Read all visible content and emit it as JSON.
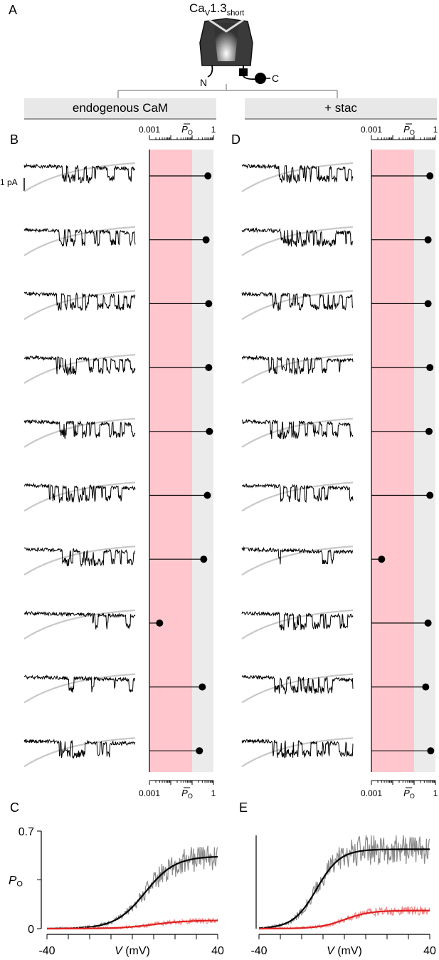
{
  "panel_labels": {
    "A": "A",
    "B": "B",
    "C": "C",
    "D": "D",
    "E": "E"
  },
  "header": {
    "channel_prefix": "Ca",
    "channel_sub_v": "V",
    "channel_mid": "1.3",
    "channel_sub_short": "short",
    "n_term": "N",
    "c_term": "C"
  },
  "conditions": {
    "left": "endogenous CaM",
    "right": "+ stac"
  },
  "scale_bar": "1 pA",
  "colors": {
    "trace": "#000000",
    "fit": "#c8c8c8",
    "low_band": "#ffc7cd",
    "high_band": "#ebebeb",
    "data_gray": "#8a8a8a",
    "data_red": "#f08a8a",
    "fit_red": "#e02020"
  },
  "chart_data": [
    {
      "type": "scatter",
      "panel": "B",
      "xscale": "log",
      "xlim": [
        0.001,
        1
      ],
      "xticks": [
        "0.001",
        "1"
      ],
      "xlabel_top": "P",
      "xlabel_sub": "O",
      "threshold": 0.1,
      "values": [
        0.55,
        0.45,
        0.6,
        0.6,
        0.65,
        0.52,
        0.35,
        0.003,
        0.3,
        0.22
      ]
    },
    {
      "type": "scatter",
      "panel": "D",
      "xscale": "log",
      "xlim": [
        0.001,
        1
      ],
      "xticks": [
        "0.001",
        "1"
      ],
      "xlabel_top": "P",
      "xlabel_sub": "O",
      "threshold": 0.1,
      "values": [
        0.55,
        0.45,
        0.45,
        0.55,
        0.5,
        0.55,
        0.003,
        0.45,
        0.35,
        0.6
      ]
    },
    {
      "type": "line",
      "panel": "C",
      "xlim": [
        -40,
        40
      ],
      "ylim": [
        0,
        0.7
      ],
      "xticks": [
        "-40",
        "40"
      ],
      "yticks": [
        "0.7",
        "0"
      ],
      "xlabel": "V",
      "xlabel_unit": "(mV)",
      "ylabel": "P",
      "ylabel_sub": "O",
      "series": [
        {
          "color": "black",
          "v_half": 6,
          "slope": 7,
          "max": 0.52
        },
        {
          "color": "red",
          "v_half": 10,
          "slope": 8,
          "max": 0.06
        }
      ]
    },
    {
      "type": "line",
      "panel": "E",
      "xlim": [
        -40,
        40
      ],
      "ylim": [
        0,
        0.7
      ],
      "xticks": [
        "-40",
        "40"
      ],
      "xlabel": "V",
      "xlabel_unit": "(mV)",
      "series": [
        {
          "color": "black",
          "v_half": -13,
          "slope": 5.5,
          "max": 0.57
        },
        {
          "color": "red",
          "v_half": 0,
          "slope": 6,
          "max": 0.13
        }
      ]
    }
  ]
}
